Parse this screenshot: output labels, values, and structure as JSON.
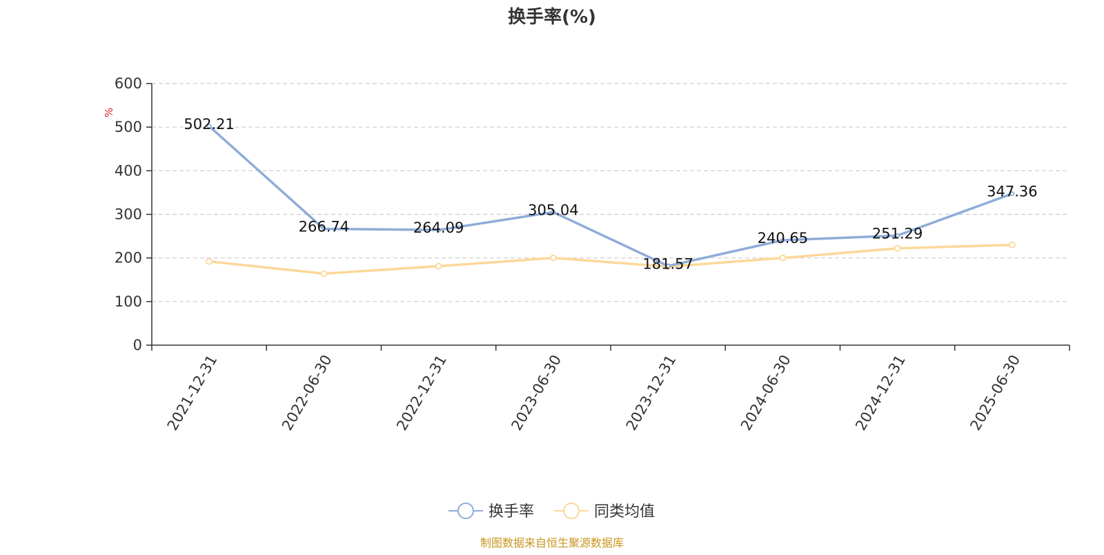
{
  "chart_data": {
    "type": "line",
    "title": "换手率(%)",
    "ylabel": "%",
    "ylim": [
      0,
      600
    ],
    "yticks": [
      0,
      100,
      200,
      300,
      400,
      500,
      600
    ],
    "categories": [
      "2021-12-31",
      "2022-06-30",
      "2022-12-31",
      "2023-06-30",
      "2023-12-31",
      "2024-06-30",
      "2024-12-31",
      "2025-06-30"
    ],
    "series": [
      {
        "name": "换手率",
        "color": "#8eacd8",
        "values": [
          502.21,
          266.74,
          264.09,
          305.04,
          181.57,
          240.65,
          251.29,
          347.36
        ],
        "labels": [
          "502.21",
          "266.74",
          "264.09",
          "305.04",
          "181.57",
          "240.65",
          "251.29",
          "347.36"
        ]
      },
      {
        "name": "同类均值",
        "color": "#fbd899",
        "values": [
          192,
          164,
          181,
          200,
          180,
          200,
          222,
          230
        ]
      }
    ],
    "grid": true,
    "legend_position": "bottom"
  },
  "source": "制图数据来自恒生聚源数据库"
}
